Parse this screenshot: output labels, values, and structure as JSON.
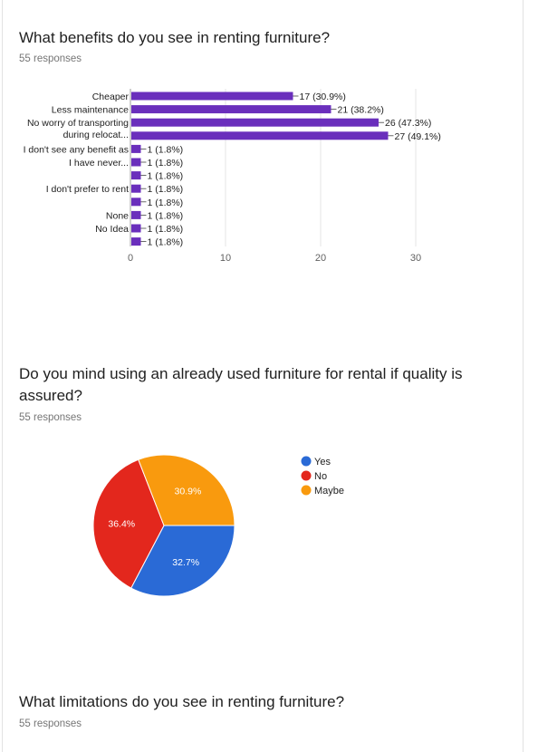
{
  "questions": [
    {
      "title": "What benefits do you see in renting furniture?",
      "responses": "55 responses"
    },
    {
      "title": "Do you mind using an already used furniture for rental if quality is assured?",
      "responses": "55 responses"
    },
    {
      "title": "What limitations do you see in renting furniture?",
      "responses": "55 responses"
    }
  ],
  "colors": {
    "bar": "#6a2fbc",
    "grid": "#e6e6e6",
    "axis": "#9e9e9e",
    "yes": "#2a6ad6",
    "no": "#e3271d",
    "maybe": "#f99a0e"
  },
  "chart_data": [
    {
      "type": "bar",
      "orientation": "horizontal",
      "categories": [
        [
          "Cheaper"
        ],
        [
          "Less maintenance"
        ],
        [
          "No worry of transporting",
          "during relocat..."
        ],
        [],
        [
          "I don't see any benefit as"
        ],
        [
          "I have never..."
        ],
        [],
        [
          "I don't prefer to rent"
        ],
        [],
        [
          "None"
        ],
        [
          "No Idea"
        ],
        []
      ],
      "values": [
        17,
        21,
        26,
        27,
        1,
        1,
        1,
        1,
        1,
        1,
        1,
        1
      ],
      "data_labels": [
        "17 (30.9%)",
        "21 (38.2%)",
        "26 (47.3%)",
        "27 (49.1%)",
        "1 (1.8%)",
        "1 (1.8%)",
        "1 (1.8%)",
        "1 (1.8%)",
        "1 (1.8%)",
        "1 (1.8%)",
        "1 (1.8%)",
        "1 (1.8%)"
      ],
      "xlim": [
        0,
        30
      ],
      "xticks": [
        "0",
        "10",
        "20",
        "30"
      ],
      "grid": true
    },
    {
      "type": "pie",
      "categories": [
        "Yes",
        "No",
        "Maybe"
      ],
      "values": [
        32.7,
        36.4,
        30.9
      ],
      "data_labels": [
        "32.7%",
        "36.4%",
        "30.9%"
      ],
      "legend": "right"
    }
  ]
}
